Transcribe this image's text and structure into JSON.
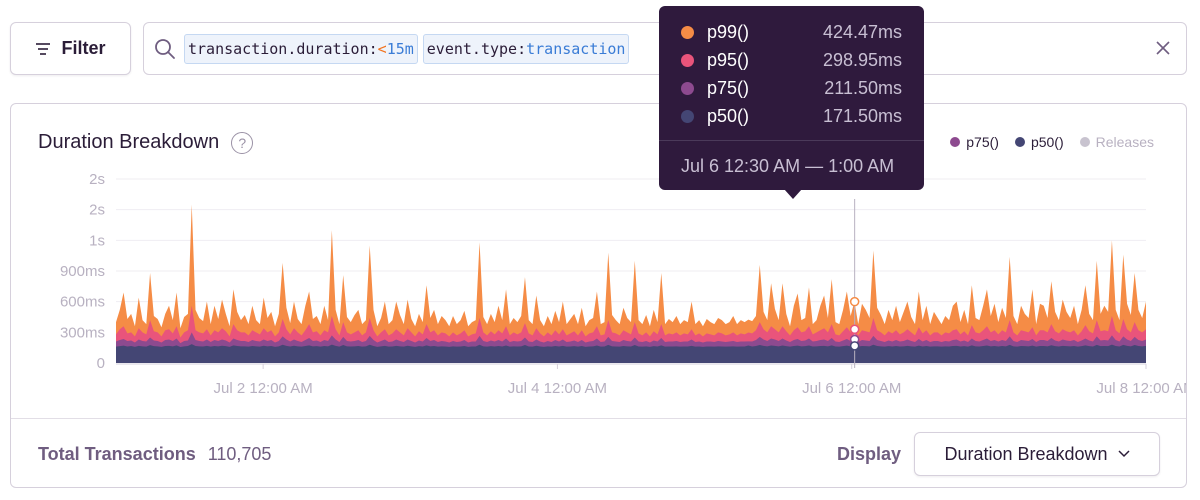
{
  "filter_button": {
    "label": "Filter",
    "icon": "filter-icon"
  },
  "search": {
    "tokens": [
      {
        "key": "transaction.duration",
        "operator": "<",
        "value": "15m"
      },
      {
        "key": "event.type",
        "operator": "",
        "value": "transaction"
      }
    ]
  },
  "panel": {
    "title": "Duration Breakdown",
    "legend": [
      {
        "label": "p75()",
        "color": "#8d4a8f"
      },
      {
        "label": "p50()",
        "color": "#444674"
      },
      {
        "label": "Releases",
        "color": "#c8c3cf"
      }
    ],
    "footer": {
      "total_label": "Total Transactions",
      "total_value": "110,705",
      "display_label": "Display",
      "display_value": "Duration Breakdown"
    }
  },
  "tooltip": {
    "rows": [
      {
        "name": "p99()",
        "value": "424.47ms",
        "color": "#f58c46"
      },
      {
        "name": "p95()",
        "value": "298.95ms",
        "color": "#e9547b"
      },
      {
        "name": "p75()",
        "value": "211.50ms",
        "color": "#8d4a8f"
      },
      {
        "name": "p50()",
        "value": "171.50ms",
        "color": "#444674"
      }
    ],
    "time_range": "Jul 6 12:30 AM — 1:00 AM"
  },
  "chart_data": {
    "type": "area",
    "title": "Duration Breakdown",
    "y_ticks": [
      "0",
      "300ms",
      "600ms",
      "900ms",
      "1s",
      "2s",
      "2s"
    ],
    "ylim": [
      0,
      1800
    ],
    "x_ticks": [
      {
        "label": "Jul 2 12:00 AM",
        "day": 1.0
      },
      {
        "label": "Jul 4 12:00 AM",
        "day": 3.0
      },
      {
        "label": "Jul 6 12:00 AM",
        "day": 5.0
      },
      {
        "label": "Jul 8 12:00 AM",
        "day": 7.0
      }
    ],
    "xlim": [
      0.0,
      7.0
    ],
    "hover_day": 5.02,
    "series": [
      {
        "name": "p99()",
        "color": "#f58c46",
        "values": [
          400,
          520,
          690,
          430,
          480,
          360,
          640,
          420,
          380,
          880,
          460,
          430,
          350,
          480,
          560,
          420,
          690,
          340,
          450,
          480,
          1550,
          520,
          440,
          410,
          600,
          380,
          560,
          430,
          620,
          480,
          360,
          720,
          500,
          420,
          470,
          380,
          560,
          420,
          380,
          640,
          440,
          500,
          360,
          480,
          980,
          540,
          390,
          600,
          430,
          380,
          560,
          700,
          430,
          460,
          380,
          560,
          420,
          1300,
          520,
          380,
          860,
          450,
          400,
          470,
          520,
          380,
          420,
          1150,
          520,
          360,
          440,
          600,
          380,
          420,
          600,
          470,
          380,
          620,
          430,
          360,
          480,
          400,
          760,
          440,
          520,
          380,
          460,
          420,
          360,
          460,
          380,
          420,
          510,
          360,
          400,
          420,
          1180,
          450,
          380,
          480,
          400,
          560,
          420,
          720,
          380,
          440,
          400,
          460,
          840,
          420,
          380,
          660,
          420,
          360,
          460,
          380,
          510,
          400,
          600,
          380,
          430,
          480,
          380,
          540,
          360,
          420,
          440,
          700,
          380,
          400,
          1080,
          470,
          420,
          380,
          540,
          440,
          400,
          1000,
          420,
          380,
          470,
          360,
          520,
          400,
          880,
          380,
          430,
          400,
          460,
          380,
          420,
          400,
          600,
          380,
          420,
          360,
          430,
          400,
          380,
          440,
          420,
          380,
          400,
          460,
          380,
          420,
          400,
          424,
          410,
          460,
          960,
          500,
          420,
          780,
          530,
          420,
          780,
          480,
          360,
          560,
          680,
          420,
          440,
          740,
          380,
          420,
          560,
          660,
          440,
          820,
          400,
          380,
          520,
          700,
          460,
          600,
          380,
          580,
          520,
          440,
          1100,
          540,
          470,
          380,
          520,
          420,
          560,
          400,
          500,
          600,
          450,
          380,
          700,
          420,
          560,
          380,
          500,
          440,
          380,
          460,
          420,
          560,
          600,
          400,
          520,
          380,
          760,
          440,
          420,
          560,
          720,
          460,
          580,
          400,
          540,
          440,
          1040,
          460,
          380,
          560,
          480,
          440,
          720,
          380,
          580,
          560,
          440,
          800,
          500,
          420,
          620,
          500,
          440,
          560,
          380,
          520,
          760,
          480,
          420,
          1000,
          480,
          560,
          500,
          1200,
          520,
          420,
          1060,
          580,
          470,
          880,
          520,
          440,
          600
        ]
      },
      {
        "name": "p95()",
        "color": "#e9547b",
        "values": [
          280,
          330,
          360,
          290,
          300,
          260,
          340,
          300,
          280,
          420,
          310,
          300,
          260,
          320,
          330,
          290,
          360,
          250,
          300,
          320,
          560,
          320,
          300,
          290,
          330,
          270,
          320,
          300,
          340,
          310,
          260,
          380,
          320,
          300,
          300,
          270,
          320,
          300,
          280,
          340,
          300,
          320,
          260,
          300,
          430,
          330,
          280,
          340,
          300,
          270,
          320,
          380,
          300,
          310,
          270,
          320,
          300,
          460,
          330,
          270,
          400,
          300,
          280,
          300,
          320,
          270,
          300,
          440,
          320,
          260,
          300,
          330,
          270,
          290,
          330,
          300,
          270,
          340,
          300,
          260,
          310,
          280,
          380,
          300,
          320,
          270,
          300,
          290,
          260,
          300,
          270,
          290,
          320,
          260,
          280,
          290,
          440,
          300,
          270,
          310,
          280,
          320,
          290,
          360,
          270,
          300,
          280,
          300,
          390,
          290,
          270,
          340,
          290,
          260,
          300,
          270,
          320,
          280,
          330,
          270,
          290,
          310,
          270,
          320,
          260,
          290,
          300,
          360,
          270,
          280,
          420,
          300,
          290,
          270,
          320,
          300,
          280,
          400,
          290,
          270,
          300,
          260,
          310,
          280,
          380,
          270,
          290,
          280,
          300,
          270,
          290,
          280,
          330,
          270,
          290,
          260,
          290,
          280,
          270,
          300,
          290,
          270,
          280,
          300,
          270,
          290,
          280,
          299,
          290,
          320,
          400,
          330,
          300,
          360,
          330,
          300,
          360,
          310,
          270,
          320,
          350,
          300,
          310,
          360,
          280,
          300,
          320,
          340,
          300,
          380,
          280,
          270,
          310,
          350,
          300,
          330,
          270,
          320,
          310,
          300,
          440,
          320,
          300,
          270,
          310,
          290,
          320,
          280,
          300,
          330,
          300,
          270,
          350,
          290,
          320,
          270,
          300,
          300,
          270,
          300,
          290,
          320,
          330,
          280,
          310,
          270,
          370,
          300,
          290,
          320,
          360,
          300,
          320,
          280,
          320,
          300,
          420,
          300,
          270,
          320,
          310,
          300,
          350,
          270,
          320,
          320,
          300,
          380,
          310,
          290,
          330,
          310,
          300,
          320,
          270,
          310,
          370,
          310,
          290,
          420,
          310,
          320,
          310,
          460,
          320,
          290,
          430,
          330,
          300,
          400,
          320,
          300,
          330
        ]
      },
      {
        "name": "p75()",
        "color": "#8d4a8f",
        "values": [
          210,
          225,
          235,
          215,
          220,
          200,
          230,
          215,
          210,
          250,
          220,
          215,
          200,
          225,
          230,
          215,
          240,
          195,
          215,
          220,
          300,
          225,
          215,
          210,
          230,
          205,
          225,
          215,
          230,
          220,
          200,
          240,
          225,
          215,
          215,
          205,
          225,
          215,
          210,
          230,
          215,
          225,
          200,
          215,
          260,
          230,
          210,
          230,
          215,
          205,
          225,
          245,
          215,
          220,
          205,
          225,
          215,
          270,
          230,
          205,
          255,
          215,
          210,
          215,
          225,
          205,
          215,
          265,
          225,
          200,
          215,
          230,
          205,
          210,
          230,
          215,
          205,
          230,
          215,
          200,
          220,
          210,
          245,
          215,
          225,
          205,
          215,
          210,
          200,
          215,
          205,
          210,
          225,
          200,
          210,
          210,
          265,
          215,
          205,
          220,
          210,
          225,
          210,
          240,
          205,
          215,
          210,
          215,
          250,
          210,
          205,
          230,
          210,
          200,
          215,
          205,
          225,
          210,
          230,
          205,
          210,
          220,
          205,
          225,
          200,
          210,
          215,
          240,
          205,
          210,
          255,
          215,
          210,
          205,
          225,
          215,
          210,
          250,
          210,
          205,
          215,
          200,
          220,
          210,
          245,
          205,
          210,
          210,
          215,
          205,
          210,
          210,
          230,
          205,
          210,
          200,
          210,
          210,
          205,
          215,
          210,
          205,
          210,
          215,
          205,
          210,
          210,
          211,
          210,
          225,
          255,
          230,
          215,
          240,
          230,
          215,
          240,
          220,
          205,
          225,
          235,
          215,
          220,
          240,
          210,
          215,
          225,
          230,
          215,
          245,
          210,
          205,
          220,
          235,
          215,
          230,
          205,
          225,
          220,
          215,
          265,
          225,
          215,
          205,
          220,
          210,
          225,
          210,
          215,
          230,
          215,
          205,
          235,
          210,
          225,
          205,
          215,
          215,
          205,
          215,
          210,
          225,
          230,
          210,
          220,
          205,
          240,
          215,
          210,
          225,
          240,
          215,
          225,
          210,
          225,
          215,
          260,
          215,
          205,
          225,
          220,
          215,
          235,
          205,
          225,
          225,
          215,
          245,
          220,
          210,
          230,
          220,
          215,
          225,
          205,
          220,
          240,
          220,
          210,
          260,
          220,
          225,
          220,
          270,
          225,
          210,
          260,
          230,
          215,
          255,
          225,
          215,
          230
        ]
      },
      {
        "name": "p50()",
        "color": "#444674",
        "values": [
          160,
          165,
          170,
          162,
          166,
          158,
          168,
          163,
          160,
          175,
          165,
          163,
          158,
          166,
          168,
          163,
          172,
          156,
          163,
          166,
          185,
          166,
          163,
          162,
          168,
          160,
          166,
          163,
          169,
          165,
          158,
          172,
          166,
          163,
          163,
          160,
          166,
          163,
          160,
          169,
          163,
          166,
          158,
          163,
          178,
          168,
          161,
          169,
          163,
          160,
          166,
          173,
          163,
          165,
          160,
          166,
          163,
          180,
          168,
          160,
          176,
          163,
          161,
          163,
          166,
          160,
          163,
          178,
          166,
          158,
          163,
          168,
          160,
          162,
          168,
          163,
          160,
          169,
          163,
          158,
          165,
          161,
          173,
          163,
          166,
          160,
          163,
          162,
          158,
          163,
          160,
          162,
          166,
          158,
          161,
          162,
          178,
          163,
          160,
          165,
          161,
          166,
          162,
          171,
          160,
          163,
          161,
          163,
          176,
          162,
          160,
          169,
          162,
          158,
          163,
          160,
          166,
          161,
          168,
          160,
          162,
          165,
          160,
          166,
          158,
          162,
          163,
          171,
          160,
          161,
          177,
          163,
          162,
          160,
          166,
          163,
          161,
          176,
          162,
          160,
          163,
          158,
          165,
          161,
          173,
          160,
          162,
          161,
          163,
          160,
          162,
          161,
          168,
          160,
          162,
          158,
          162,
          161,
          160,
          163,
          162,
          160,
          161,
          163,
          160,
          162,
          161,
          171,
          162,
          166,
          176,
          168,
          163,
          171,
          168,
          163,
          171,
          165,
          160,
          166,
          170,
          163,
          165,
          171,
          161,
          163,
          166,
          168,
          163,
          173,
          161,
          160,
          165,
          170,
          163,
          168,
          160,
          166,
          165,
          163,
          178,
          166,
          163,
          160,
          165,
          162,
          166,
          161,
          163,
          168,
          163,
          160,
          170,
          162,
          166,
          160,
          163,
          163,
          160,
          163,
          162,
          166,
          168,
          161,
          165,
          160,
          172,
          163,
          162,
          166,
          171,
          163,
          166,
          161,
          166,
          163,
          177,
          163,
          160,
          166,
          165,
          163,
          170,
          160,
          166,
          166,
          163,
          174,
          165,
          162,
          168,
          165,
          163,
          166,
          160,
          165,
          172,
          165,
          162,
          177,
          165,
          166,
          165,
          180,
          166,
          162,
          177,
          168,
          163,
          176,
          166,
          163,
          168
        ]
      }
    ]
  }
}
